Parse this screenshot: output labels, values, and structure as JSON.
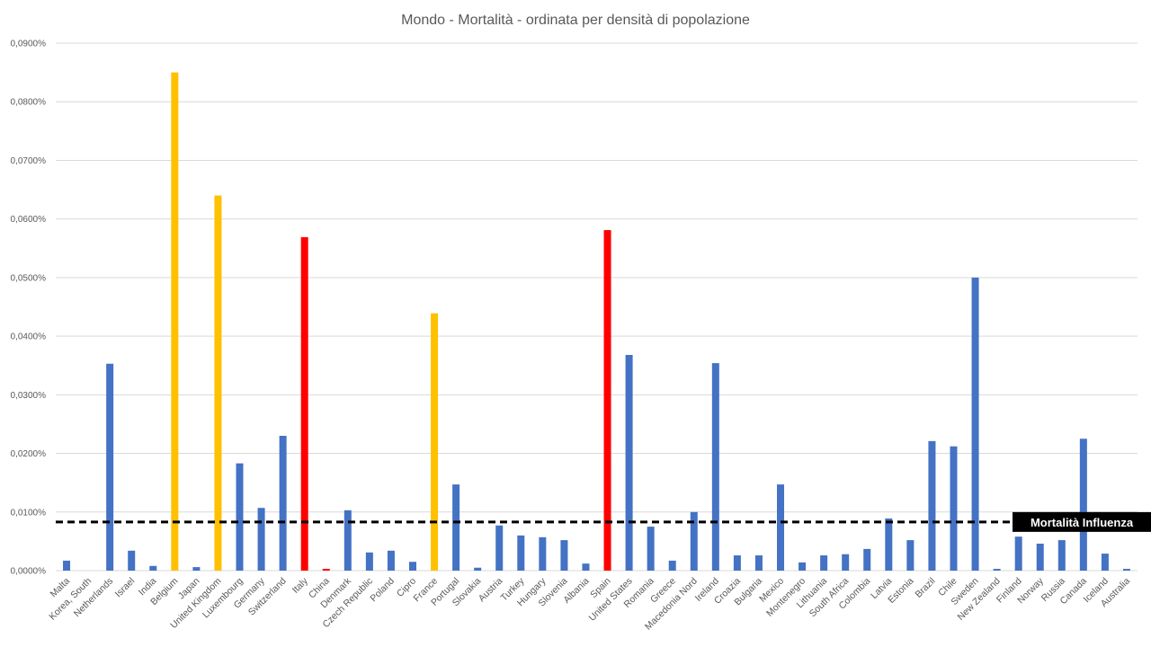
{
  "chart_data": {
    "type": "bar",
    "title": "Mondo - Mortalità - ordinata per densità di popolazione",
    "xlabel": "",
    "ylabel": "",
    "ylim": [
      0,
      0.09
    ],
    "y_unit": "%",
    "y_ticks": [
      "0,0000%",
      "0,0100%",
      "0,0200%",
      "0,0300%",
      "0,0400%",
      "0,0500%",
      "0,0600%",
      "0,0700%",
      "0,0800%",
      "0,0900%"
    ],
    "grid": true,
    "legend": "none",
    "colors": {
      "default": "#4472C4",
      "highlight_yellow": "#FFC000",
      "highlight_red": "#FF0000"
    },
    "categories": [
      "Malta",
      "Korea, South",
      "Netherlands",
      "Israel",
      "India",
      "Belgium",
      "Japan",
      "United Kingdom",
      "Luxembourg",
      "Germany",
      "Switzerland",
      "Italy",
      "China",
      "Denmark",
      "Czech Republic",
      "Poland",
      "Cipro",
      "France",
      "Portugal",
      "Slovakia",
      "Austria",
      "Turkey",
      "Hungary",
      "Slovenia",
      "Albania",
      "Spain",
      "United States",
      "Romania",
      "Greece",
      "Macedonia Nord",
      "Ireland",
      "Croazia",
      "Bulgaria",
      "Mexico",
      "Montenegro",
      "Lithuania",
      "South Africa",
      "Colombia",
      "Latvia",
      "Estonia",
      "Brazil",
      "Chile",
      "Sweden",
      "New Zealand",
      "Finland",
      "Norway",
      "Russia",
      "Canada",
      "Iceland",
      "Australia"
    ],
    "values": [
      0.0017,
      0.0,
      0.0353,
      0.0034,
      0.0008,
      0.085,
      0.0006,
      0.064,
      0.0183,
      0.0107,
      0.023,
      0.0569,
      0.0003,
      0.0103,
      0.0031,
      0.0034,
      0.0015,
      0.0439,
      0.0147,
      0.0005,
      0.0077,
      0.006,
      0.0057,
      0.0052,
      0.0012,
      0.0581,
      0.0368,
      0.0075,
      0.0017,
      0.01,
      0.0354,
      0.0026,
      0.0026,
      0.0147,
      0.0014,
      0.0026,
      0.0028,
      0.0037,
      0.0089,
      0.0052,
      0.0221,
      0.0212,
      0.05,
      0.0003,
      0.0058,
      0.0046,
      0.0052,
      0.0225,
      0.0029,
      0.0003
    ],
    "bar_colors": [
      "default",
      "default",
      "default",
      "default",
      "default",
      "highlight_yellow",
      "default",
      "highlight_yellow",
      "default",
      "default",
      "default",
      "highlight_red",
      "highlight_red",
      "default",
      "default",
      "default",
      "default",
      "highlight_yellow",
      "default",
      "default",
      "default",
      "default",
      "default",
      "default",
      "default",
      "highlight_red",
      "default",
      "default",
      "default",
      "default",
      "default",
      "default",
      "default",
      "default",
      "default",
      "default",
      "default",
      "default",
      "default",
      "default",
      "default",
      "default",
      "default",
      "default",
      "default",
      "default",
      "default",
      "default",
      "default",
      "default"
    ],
    "reference_line": {
      "label": "Mortalità Influenza",
      "value": 0.0083,
      "style": "dashed",
      "color": "#000000"
    }
  }
}
